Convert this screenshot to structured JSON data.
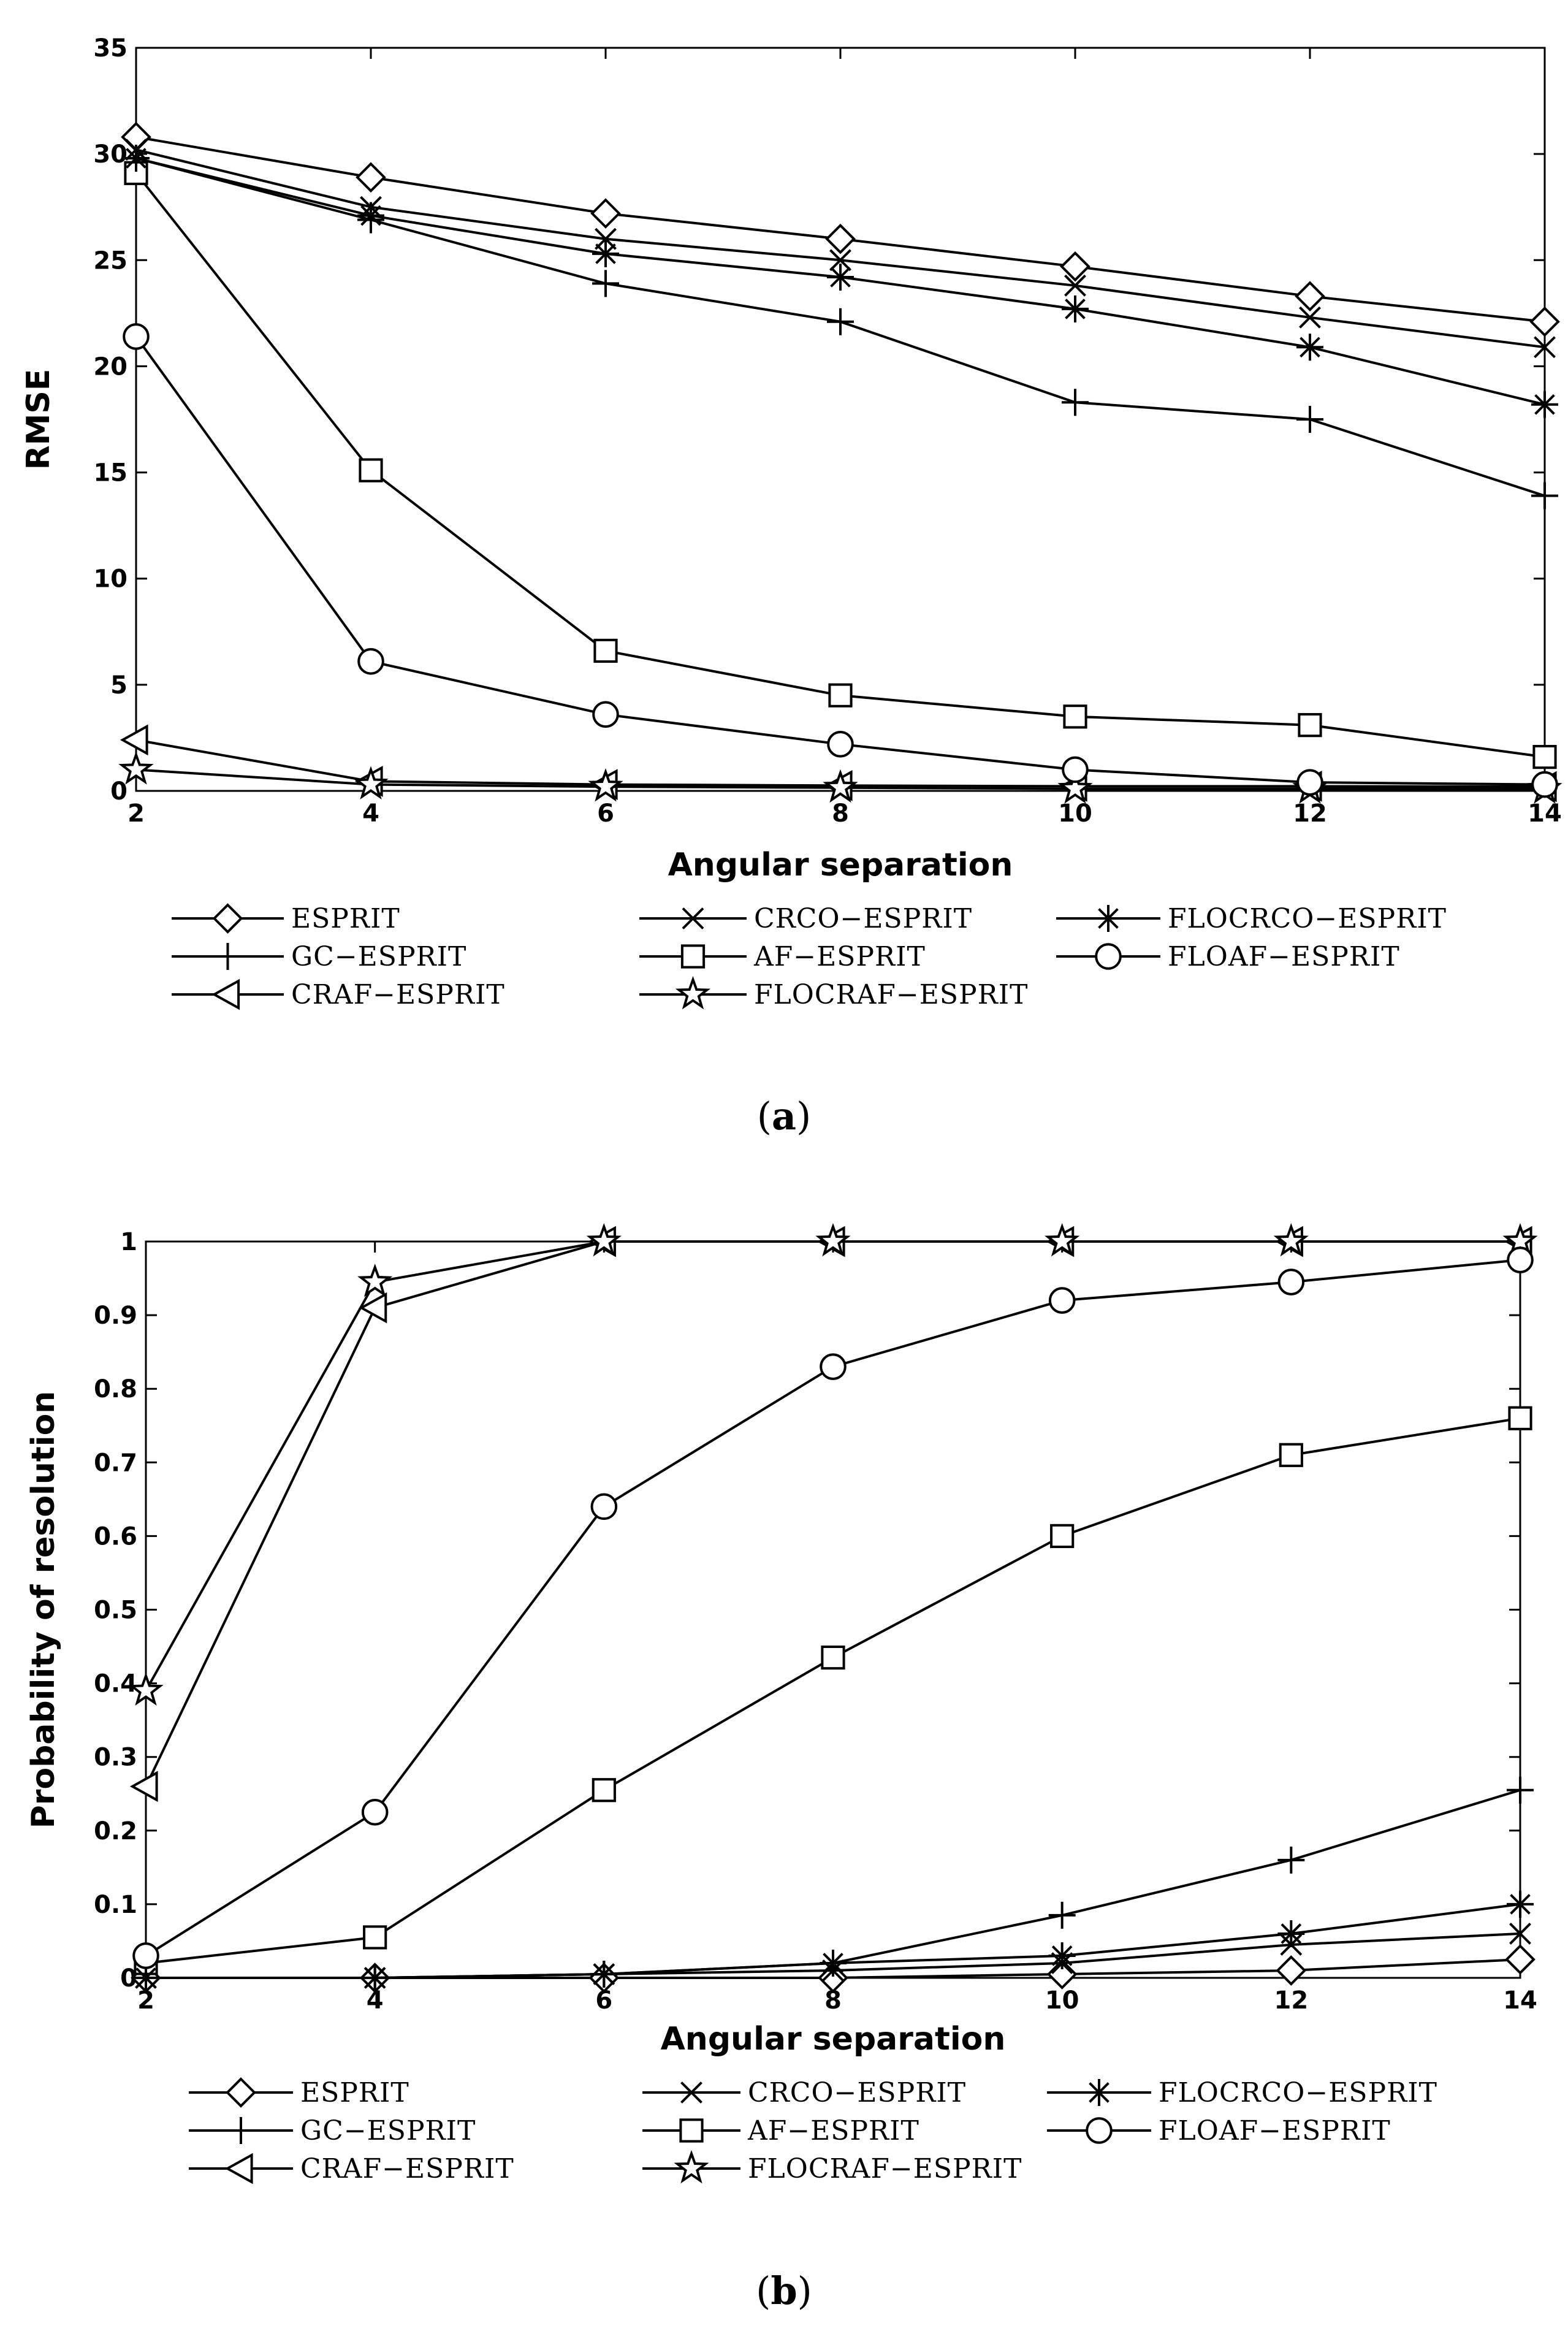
{
  "chart_data": [
    {
      "type": "line",
      "caption_open": "(",
      "caption_letter": "a",
      "caption_close": ")",
      "xlabel": "Angular separation",
      "ylabel": "RMSE",
      "xlim": [
        2,
        14
      ],
      "ylim": [
        0,
        35
      ],
      "xticks": [
        2,
        4,
        6,
        8,
        10,
        12,
        14
      ],
      "yticks": [
        0,
        5,
        10,
        15,
        20,
        25,
        30,
        35
      ],
      "x": [
        2,
        4,
        6,
        8,
        10,
        12,
        14
      ],
      "legend_position": "bottom",
      "series": [
        {
          "name": "ESPRIT",
          "marker": "diamond",
          "values": [
            30.8,
            28.9,
            27.2,
            26.0,
            24.7,
            23.3,
            22.1
          ]
        },
        {
          "name": "GC−ESPRIT",
          "marker": "plus",
          "values": [
            29.8,
            26.9,
            23.9,
            22.1,
            18.3,
            17.5,
            13.9
          ]
        },
        {
          "name": "CRAF−ESPRIT",
          "marker": "triangle-left",
          "values": [
            2.4,
            0.45,
            0.3,
            0.25,
            0.22,
            0.22,
            0.2
          ]
        },
        {
          "name": "CRCO−ESPRIT",
          "marker": "x",
          "values": [
            30.2,
            27.5,
            26.0,
            25.0,
            23.8,
            22.3,
            20.9
          ]
        },
        {
          "name": "AF−ESPRIT",
          "marker": "square",
          "values": [
            29.1,
            15.1,
            6.6,
            4.5,
            3.5,
            3.1,
            1.6
          ]
        },
        {
          "name": "FLOCRAF−ESPRIT",
          "marker": "star",
          "values": [
            1.0,
            0.3,
            0.2,
            0.15,
            0.1,
            0.1,
            0.1
          ]
        },
        {
          "name": "FLOCRCO−ESPRIT",
          "marker": "asterisk",
          "values": [
            29.8,
            27.1,
            25.3,
            24.2,
            22.7,
            20.9,
            18.2
          ]
        },
        {
          "name": "FLOAF−ESPRIT",
          "marker": "circle",
          "values": [
            21.4,
            6.1,
            3.6,
            2.2,
            1.0,
            0.4,
            0.3
          ]
        }
      ]
    },
    {
      "type": "line",
      "caption_open": "(",
      "caption_letter": "b",
      "caption_close": ")",
      "xlabel": "Angular separation",
      "ylabel": "Probability of resolution",
      "xlim": [
        2,
        14
      ],
      "ylim": [
        0,
        1
      ],
      "xticks": [
        2,
        4,
        6,
        8,
        10,
        12,
        14
      ],
      "yticks": [
        0,
        0.1,
        0.2,
        0.3,
        0.4,
        0.5,
        0.6,
        0.7,
        0.8,
        0.9,
        1
      ],
      "x": [
        2,
        4,
        6,
        8,
        10,
        12,
        14
      ],
      "legend_position": "bottom",
      "series": [
        {
          "name": "ESPRIT",
          "marker": "diamond",
          "values": [
            0,
            0,
            0,
            0,
            0.005,
            0.01,
            0.025
          ]
        },
        {
          "name": "GC−ESPRIT",
          "marker": "plus",
          "values": [
            0,
            0,
            0.005,
            0.02,
            0.085,
            0.16,
            0.255
          ]
        },
        {
          "name": "CRAF−ESPRIT",
          "marker": "triangle-left",
          "values": [
            0.26,
            0.91,
            1.0,
            1.0,
            1.0,
            1.0,
            1.0
          ]
        },
        {
          "name": "CRCO−ESPRIT",
          "marker": "x",
          "values": [
            0,
            0,
            0.005,
            0.01,
            0.02,
            0.045,
            0.06
          ]
        },
        {
          "name": "AF−ESPRIT",
          "marker": "square",
          "values": [
            0.02,
            0.055,
            0.255,
            0.435,
            0.6,
            0.71,
            0.76
          ]
        },
        {
          "name": "FLOCRAF−ESPRIT",
          "marker": "star",
          "values": [
            0.39,
            0.945,
            1.0,
            1.0,
            1.0,
            1.0,
            1.0
          ]
        },
        {
          "name": "FLOCRCO−ESPRIT",
          "marker": "asterisk",
          "values": [
            0,
            0,
            0.005,
            0.02,
            0.03,
            0.06,
            0.1
          ]
        },
        {
          "name": "FLOAF−ESPRIT",
          "marker": "circle",
          "values": [
            0.03,
            0.225,
            0.64,
            0.83,
            0.92,
            0.945,
            0.975
          ]
        }
      ]
    }
  ]
}
